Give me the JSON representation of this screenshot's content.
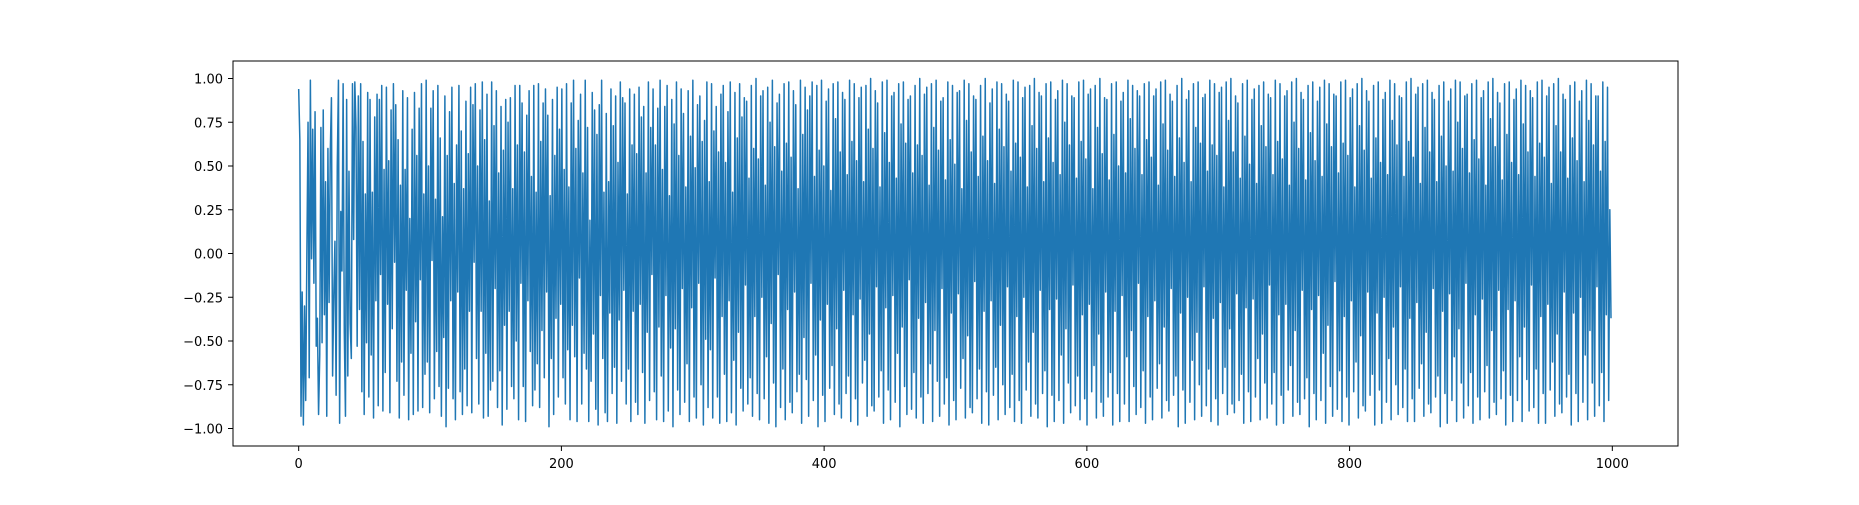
{
  "chart_data": {
    "type": "line",
    "title": "",
    "xlabel": "",
    "ylabel": "",
    "xlim": [
      -50,
      1050
    ],
    "ylim": [
      -1.1,
      1.1
    ],
    "xticks": [
      0,
      200,
      400,
      600,
      800,
      1000
    ],
    "xtick_labels": [
      "0",
      "200",
      "400",
      "600",
      "800",
      "1000"
    ],
    "yticks": [
      -1.0,
      -0.75,
      -0.5,
      -0.25,
      0.0,
      0.25,
      0.5,
      0.75,
      1.0
    ],
    "ytick_labels": [
      "−1.00",
      "−0.75",
      "−0.50",
      "−0.25",
      "0.00",
      "0.25",
      "0.50",
      "0.75",
      "1.00"
    ],
    "grid": false,
    "line_color": "#1f77b4",
    "series": [
      {
        "n_points": 1000,
        "x_start": 0,
        "x_step": 1,
        "values": [
          0.94,
          0.65,
          -0.93,
          -0.22,
          -0.98,
          -0.3,
          -0.84,
          0.0,
          0.75,
          -0.71,
          0.99,
          -0.03,
          0.71,
          -0.17,
          0.81,
          -0.53,
          -0.37,
          -0.92,
          -0.58,
          0.72,
          -0.51,
          0.82,
          -0.35,
          0.41,
          -0.93,
          0.6,
          -0.28,
          0.57,
          0.89,
          -0.7,
          -0.24,
          0.07,
          -0.81,
          0.5,
          0.99,
          -0.97,
          0.24,
          -0.1,
          0.97,
          -0.45,
          -0.93,
          0.88,
          -0.7,
          0.47,
          -0.4,
          -0.6,
          0.97,
          0.08,
          0.98,
          0.72,
          -0.53,
          0.9,
          -0.32,
          0.97,
          -0.79,
          0.64,
          -0.92,
          0.34,
          -0.51,
          0.92,
          -0.82,
          0.88,
          -0.58,
          0.35,
          -0.94,
          0.78,
          -0.27,
          0.91,
          -0.87,
          0.88,
          -0.12,
          0.96,
          -0.9,
          0.48,
          -0.68,
          0.95,
          -0.29,
          0.53,
          -0.91,
          0.82,
          -0.43,
          0.97,
          -0.05,
          0.85,
          -0.73,
          0.65,
          -0.94,
          0.39,
          -0.62,
          0.93,
          -0.81,
          0.48,
          -0.21,
          0.89,
          -0.95,
          0.2,
          -0.57,
          0.71,
          -0.92,
          0.92,
          -0.39,
          0.56,
          -0.9,
          0.83,
          -0.15,
          0.97,
          -0.88,
          0.34,
          -0.69,
          0.99,
          -0.62,
          0.5,
          -0.91,
          0.83,
          -0.04,
          0.93,
          -0.83,
          0.31,
          -0.56,
          0.96,
          -0.76,
          0.66,
          -0.93,
          0.21,
          -0.48,
          0.9,
          -0.99,
          0.56,
          -0.77,
          0.81,
          -0.27,
          0.95,
          -0.83,
          0.4,
          -0.95,
          0.62,
          -0.22,
          0.96,
          -0.79,
          0.7,
          -0.92,
          0.37,
          -0.66,
          0.87,
          -0.87,
          0.57,
          -0.33,
          0.95,
          -0.91,
          0.85,
          -0.05,
          0.97,
          -0.6,
          0.5,
          -0.86,
          0.82,
          -0.33,
          0.98,
          -0.94,
          0.65,
          -0.57,
          0.91,
          -0.93,
          0.3,
          -0.78,
          0.98,
          -0.73,
          0.73,
          -0.2,
          0.93,
          -0.88,
          0.46,
          -0.67,
          0.84,
          -0.98,
          0.59,
          -0.41,
          0.88,
          -0.89,
          0.75,
          -0.33,
          0.89,
          -0.76,
          0.37,
          -0.83,
          0.96,
          -0.5,
          0.62,
          -0.95,
          0.96,
          -0.17,
          0.86,
          -0.76,
          0.58,
          -0.96,
          0.79,
          -0.27,
          0.93,
          -0.56,
          0.44,
          -0.87,
          0.96,
          -0.78,
          0.35,
          -0.63,
          0.97,
          -0.88,
          0.64,
          -0.44,
          0.86,
          -0.71,
          0.94,
          -0.22,
          0.79,
          -0.99,
          0.33,
          -0.6,
          0.88,
          -0.92,
          0.56,
          -0.37,
          0.95,
          -0.82,
          0.71,
          -0.29,
          0.94,
          -0.71,
          0.48,
          -0.86,
          0.97,
          -0.55,
          0.38,
          -0.95,
          0.86,
          -0.41,
          0.99,
          -0.59,
          0.6,
          -0.96,
          0.76,
          -0.14,
          0.91,
          -0.86,
          0.46,
          -0.57,
          0.99,
          -0.66,
          0.72,
          -0.96,
          0.19,
          -0.73,
          0.92,
          -0.46,
          0.82,
          -0.89,
          0.68,
          -0.98,
          0.85,
          -0.24,
          0.99,
          -0.6,
          0.35,
          -0.91,
          0.8,
          -0.96,
          0.41,
          -0.34,
          0.94,
          -0.8,
          0.73,
          -0.65,
          0.9,
          -0.97,
          0.52,
          -0.38,
          0.98,
          -0.73,
          0.89,
          -0.21,
          0.86,
          -0.86,
          0.34,
          -0.66,
          0.94,
          -0.96,
          0.62,
          -0.33,
          0.91,
          -0.85,
          0.57,
          -0.92,
          0.95,
          -0.29,
          0.78,
          -0.68,
          0.84,
          -0.97,
          0.46,
          -0.45,
          0.98,
          -0.84,
          0.72,
          -0.12,
          0.94,
          -0.79,
          0.62,
          -0.95,
          0.83,
          -0.42,
          0.99,
          -0.7,
          0.48,
          -0.96,
          0.84,
          -0.24,
          0.96,
          -0.9,
          0.33,
          -0.54,
          0.88,
          -0.99,
          0.74,
          -0.43,
          0.98,
          -0.78,
          0.56,
          -0.92,
          0.94,
          -0.2,
          0.8,
          -0.85,
          0.38,
          -0.63,
          0.93,
          -0.96,
          0.67,
          -0.31,
          0.99,
          -0.82,
          0.49,
          -0.94,
          0.85,
          -0.17,
          0.9,
          -0.75,
          0.64,
          -0.98,
          0.76,
          -0.49,
          0.98,
          -0.88,
          0.41,
          -0.55,
          0.97,
          -0.94,
          0.7,
          -0.14,
          0.84,
          -0.82,
          0.58,
          -0.97,
          0.91,
          -0.36,
          0.96,
          -0.69,
          0.52,
          -0.96,
          0.81,
          -0.27,
          0.98,
          -0.91,
          0.35,
          -0.61,
          0.92,
          -0.98,
          0.66,
          -0.45,
          0.97,
          -0.77,
          0.78,
          -0.9,
          0.89,
          -0.18,
          0.87,
          -0.86,
          0.43,
          -0.71,
          0.96,
          -0.93,
          0.6,
          -0.36,
          1.0,
          -0.8,
          0.54,
          -0.95,
          0.9,
          -0.25,
          0.93,
          -0.83,
          0.39,
          -0.59,
          0.95,
          -0.97,
          0.75,
          -0.4,
          0.99,
          -0.74,
          0.61,
          -0.99,
          0.86,
          -0.12,
          0.91,
          -0.88,
          0.47,
          -0.66,
          0.97,
          -0.95,
          0.63,
          -0.32,
          0.98,
          -0.85,
          0.55,
          -0.91,
          0.93,
          -0.22,
          0.85,
          -0.79,
          0.37,
          -0.69,
          0.99,
          -0.97,
          0.68,
          -0.48,
          0.95,
          -0.72,
          0.82,
          -0.93,
          0.9,
          -0.17,
          0.98,
          -0.84,
          0.44,
          -0.58,
          0.96,
          -0.99,
          0.59,
          -0.38,
          0.99,
          -0.81,
          0.5,
          -0.96,
          0.87,
          -0.29,
          0.94,
          -0.77,
          0.36,
          -0.64,
          0.97,
          -0.92,
          0.77,
          -0.43,
          0.98,
          -0.86,
          0.58,
          -0.94,
          0.92,
          -0.21,
          0.88,
          -0.8,
          0.45,
          -0.7,
          0.99,
          -0.96,
          0.64,
          -0.35,
          0.97,
          -0.83,
          0.53,
          -0.98,
          0.89,
          -0.26,
          0.95,
          -0.74,
          0.41,
          -0.61,
          0.96,
          -0.93,
          0.71,
          -0.46,
          1.0,
          -0.87,
          0.6,
          -0.9,
          0.93,
          -0.19,
          0.86,
          -0.82,
          0.38,
          -0.67,
          0.98,
          -0.97,
          0.69,
          -0.31,
          0.99,
          -0.78,
          0.52,
          -0.95,
          0.9,
          -0.24,
          0.92,
          -0.85,
          0.43,
          -0.57,
          0.97,
          -0.99,
          0.74,
          -0.42,
          0.98,
          -0.76,
          0.63,
          -0.92,
          0.88,
          -0.15,
          0.9,
          -0.89,
          0.46,
          -0.68,
          0.96,
          -0.94,
          0.62,
          -0.37,
          1.0,
          -0.82,
          0.56,
          -0.97,
          0.91,
          -0.28,
          0.95,
          -0.8,
          0.39,
          -0.63,
          0.97,
          -0.96,
          0.72,
          -0.44,
          0.99,
          -0.73,
          0.59,
          -0.93,
          0.87,
          -0.2,
          0.89,
          -0.86,
          0.42,
          -0.71,
          0.98,
          -0.98,
          0.65,
          -0.34,
          0.96,
          -0.84,
          0.51,
          -0.95,
          0.92,
          -0.23,
          0.93,
          -0.77,
          0.37,
          -0.6,
          0.99,
          -0.94,
          0.76,
          -0.47,
          0.97,
          -0.88,
          0.58,
          -0.91,
          0.9,
          -0.16,
          0.88,
          -0.83,
          0.44,
          -0.66,
          0.96,
          -0.97,
          0.67,
          -0.33,
          1.0,
          -0.79,
          0.53,
          -0.98,
          0.86,
          -0.27,
          0.94,
          -0.81,
          0.4,
          -0.65,
          0.98,
          -0.95,
          0.71,
          -0.41,
          0.97,
          -0.75,
          0.61,
          -0.92,
          0.91,
          -0.19,
          0.87,
          -0.88,
          0.47,
          -0.69,
          0.99,
          -0.96,
          0.63,
          -0.36,
          0.98,
          -0.84,
          0.55,
          -0.97,
          0.89,
          -0.25,
          0.95,
          -0.78,
          0.38,
          -0.62,
          0.96,
          -0.93,
          0.73,
          -0.45,
          1.0,
          -0.86,
          0.6,
          -0.94,
          0.92,
          -0.21,
          0.9,
          -0.8,
          0.41,
          -0.67,
          0.97,
          -0.99,
          0.66,
          -0.32,
          0.98,
          -0.81,
          0.52,
          -0.96,
          0.88,
          -0.26,
          0.93,
          -0.84,
          0.45,
          -0.58,
          0.99,
          -0.97,
          0.75,
          -0.43,
          0.97,
          -0.74,
          0.62,
          -0.91,
          0.9,
          -0.18,
          0.89,
          -0.87,
          0.43,
          -0.7,
          0.98,
          -0.95,
          0.64,
          -0.35,
          0.99,
          -0.83,
          0.54,
          -0.98,
          0.91,
          -0.29,
          0.94,
          -0.79,
          0.37,
          -0.64,
          0.96,
          -0.94,
          0.72,
          -0.46,
          1.0,
          -0.85,
          0.57,
          -0.93,
          0.89,
          -0.22,
          0.88,
          -0.82,
          0.42,
          -0.68,
          0.97,
          -0.98,
          0.68,
          -0.33,
          0.98,
          -0.8,
          0.5,
          -0.96,
          0.87,
          -0.24,
          0.92,
          -0.86,
          0.46,
          -0.59,
          0.99,
          -0.96,
          0.77,
          -0.44,
          0.96,
          -0.76,
          0.6,
          -0.92,
          0.93,
          -0.17,
          0.9,
          -0.88,
          0.45,
          -0.67,
          0.97,
          -0.97,
          0.65,
          -0.36,
          0.98,
          -0.82,
          0.55,
          -0.95,
          0.9,
          -0.27,
          0.94,
          -0.77,
          0.39,
          -0.63,
          0.98,
          -0.94,
          0.74,
          -0.42,
          0.99,
          -0.84,
          0.59,
          -0.9,
          0.91,
          -0.2,
          0.87,
          -0.81,
          0.44,
          -0.7,
          0.96,
          -0.99,
          0.66,
          -0.34,
          1.0,
          -0.78,
          0.52,
          -0.97,
          0.88,
          -0.25,
          0.93,
          -0.85,
          0.41,
          -0.61,
          0.97,
          -0.95,
          0.72,
          -0.45,
          0.98,
          -0.75,
          0.63,
          -0.93,
          0.89,
          -0.19,
          0.91,
          -0.87,
          0.47,
          -0.66,
          0.99,
          -0.96,
          0.62,
          -0.37,
          0.97,
          -0.83,
          0.56,
          -0.98,
          0.92,
          -0.28,
          0.95,
          -0.8,
          0.38,
          -0.65,
          0.98,
          -0.92,
          0.76,
          -0.43,
          1.0,
          -0.86,
          0.58,
          -0.91,
          0.9,
          -0.23,
          0.86,
          -0.84,
          0.43,
          -0.69,
          0.97,
          -0.97,
          0.67,
          -0.31,
          0.99,
          -0.79,
          0.51,
          -0.96,
          0.88,
          -0.26,
          0.94,
          -0.82,
          0.4,
          -0.6,
          0.96,
          -0.95,
          0.73,
          -0.46,
          0.98,
          -0.74,
          0.61,
          -0.94,
          0.91,
          -0.18,
          0.89,
          -0.86,
          0.45,
          -0.68,
          0.99,
          -0.98,
          0.64,
          -0.35,
          0.97,
          -0.81,
          0.54,
          -0.97,
          0.9,
          -0.29,
          0.93,
          -0.78,
          0.39,
          -0.64,
          0.98,
          -0.93,
          0.75,
          -0.44,
          1.0,
          -0.85,
          0.6,
          -0.92,
          0.92,
          -0.21,
          0.88,
          -0.83,
          0.42,
          -0.71,
          0.96,
          -0.99,
          0.69,
          -0.32,
          0.98,
          -0.8,
          0.53,
          -0.95,
          0.87,
          -0.24,
          0.95,
          -0.84,
          0.44,
          -0.57,
          0.99,
          -0.97,
          0.74,
          -0.41,
          0.97,
          -0.76,
          0.61,
          -0.93,
          0.91,
          -0.16,
          0.9,
          -0.89,
          0.46,
          -0.67,
          0.98,
          -0.96,
          0.63,
          -0.36,
          0.99,
          -0.82,
          0.56,
          -0.98,
          0.89,
          -0.27,
          0.94,
          -0.79,
          0.38,
          -0.62,
          0.97,
          -0.94,
          0.73,
          -0.47,
          1.0,
          -0.87,
          0.59,
          -0.9,
          0.93,
          -0.22,
          0.87,
          -0.81,
          0.43,
          -0.69,
          0.96,
          -0.98,
          0.66,
          -0.34,
          0.98,
          -0.78,
          0.52,
          -0.97,
          0.88,
          -0.25,
          0.92,
          -0.85,
          0.45,
          -0.6,
          0.99,
          -0.95,
          0.76,
          -0.42,
          0.97,
          -0.75,
          0.62,
          -0.92,
          0.9,
          -0.19,
          0.89,
          -0.88,
          0.44,
          -0.66,
          0.98,
          -0.96,
          0.64,
          -0.37,
          1.0,
          -0.83,
          0.55,
          -0.96,
          0.91,
          -0.28,
          0.95,
          -0.77,
          0.4,
          -0.63,
          0.97,
          -0.93,
          0.72,
          -0.45,
          0.99,
          -0.86,
          0.58,
          -0.91,
          0.92,
          -0.2,
          0.88,
          -0.82,
          0.41,
          -0.7,
          0.96,
          -0.99,
          0.67,
          -0.33,
          0.98,
          -0.8,
          0.5,
          -0.97,
          0.87,
          -0.23,
          0.94,
          -0.84,
          0.47,
          -0.59,
          0.99,
          -0.96,
          0.75,
          -0.43,
          0.98,
          -0.74,
          0.6,
          -0.94,
          0.9,
          -0.17,
          0.91,
          -0.87,
          0.46,
          -0.68,
          0.97,
          -0.97,
          0.65,
          -0.35,
          0.99,
          -0.82,
          0.54,
          -0.95,
          0.89,
          -0.26,
          0.93,
          -0.79,
          0.39,
          -0.64,
          0.98,
          -0.94,
          0.77,
          -0.44,
          1.0,
          -0.85,
          0.61,
          -0.92,
          0.92,
          -0.21,
          0.86,
          -0.83,
          0.42,
          -0.67,
          0.97,
          -0.98,
          0.68,
          -0.32,
          0.98,
          -0.81,
          0.52,
          -0.96,
          0.88,
          -0.27,
          0.94,
          -0.84,
          0.45,
          -0.59,
          0.99,
          -0.96,
          0.74,
          -0.42,
          0.96,
          -0.72,
          0.58,
          -0.9,
          0.93,
          -0.18,
          0.89,
          -0.88,
          0.44,
          -0.66,
          0.98,
          -0.97,
          0.63,
          -0.36,
          0.99,
          -0.8,
          0.55,
          -0.97,
          0.9,
          -0.29,
          0.95,
          -0.78,
          0.4,
          -0.62,
          0.97,
          -0.93,
          0.73,
          -0.46,
          1.0,
          -0.86,
          0.58,
          -0.91,
          0.91,
          -0.22,
          0.88,
          -0.82,
          0.43,
          -0.69,
          0.96,
          -0.98,
          0.66,
          -0.34,
          0.98,
          -0.8,
          0.53,
          -0.96,
          0.87,
          -0.25,
          0.93,
          -0.85,
          0.41,
          -0.58,
          0.99,
          -0.95,
          0.76,
          -0.44,
          0.97,
          -0.74,
          0.62,
          -0.93,
          0.9,
          -0.19,
          0.9,
          -0.87,
          0.47,
          -0.68,
          0.98,
          -0.96,
          0.64,
          -0.35,
          0.95,
          -0.84,
          0.25,
          -0.37
        ]
      }
    ]
  }
}
